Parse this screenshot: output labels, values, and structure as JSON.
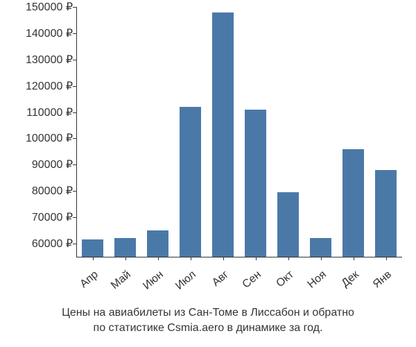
{
  "chart": {
    "type": "bar",
    "categories": [
      "Апр",
      "Май",
      "Июн",
      "Июл",
      "Авг",
      "Сен",
      "Окт",
      "Ноя",
      "Дек",
      "Янв"
    ],
    "values": [
      61500,
      62000,
      65000,
      112000,
      148000,
      111000,
      79500,
      62000,
      96000,
      88000
    ],
    "bar_color": "#4a79a8",
    "ymin": 55000,
    "ymax": 150000,
    "yticks": [
      60000,
      70000,
      80000,
      90000,
      100000,
      110000,
      120000,
      130000,
      140000,
      150000
    ],
    "ytick_labels": [
      "60000 ₽",
      "70000 ₽",
      "80000 ₽",
      "90000 ₽",
      "100000 ₽",
      "110000 ₽",
      "120000 ₽",
      "130000 ₽",
      "140000 ₽",
      "150000 ₽"
    ],
    "bar_width_ratio": 0.65,
    "background_color": "#ffffff",
    "axis_color": "#333333",
    "label_color": "#333333",
    "label_fontsize": 16,
    "x_label_rotation": -40
  },
  "caption": {
    "line1": "Цены на авиабилеты из Сан-Томе в Лиссабон и обратно",
    "line2": "по статистике Csmia.aero в динамике за год."
  }
}
